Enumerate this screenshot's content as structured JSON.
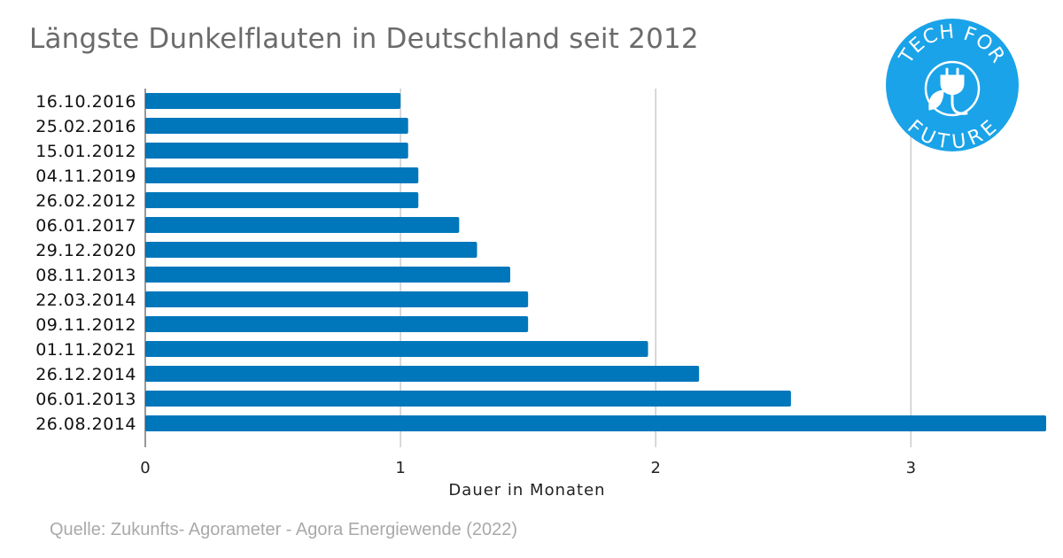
{
  "title": "Längste Dunkelflauten in Deutschland seit 2012",
  "source": "Quelle: Zukunfts- Agorameter - Agora Energiewende (2022)",
  "logo": {
    "text_top": "TECH FOR",
    "text_bottom": "FUTURE",
    "color": "#1aa3e8",
    "icon": "plug-leaf-icon"
  },
  "chart_data": {
    "type": "bar",
    "orientation": "horizontal",
    "xlabel": "Dauer in Monaten",
    "ylabel": "",
    "xlim": [
      0,
      3.53
    ],
    "xticks": [
      0,
      1,
      2,
      3
    ],
    "grid": true,
    "bar_color": "#0077bb",
    "categories": [
      "16.10.2016",
      "25.02.2016",
      "15.01.2012",
      "04.11.2019",
      "26.02.2012",
      "06.01.2017",
      "29.12.2020",
      "08.11.2013",
      "22.03.2014",
      "09.11.2012",
      "01.11.2021",
      "26.12.2014",
      "06.01.2013",
      "26.08.2014"
    ],
    "values": [
      1.0,
      1.03,
      1.03,
      1.07,
      1.07,
      1.23,
      1.3,
      1.43,
      1.5,
      1.5,
      1.97,
      2.17,
      2.53,
      3.53
    ]
  }
}
